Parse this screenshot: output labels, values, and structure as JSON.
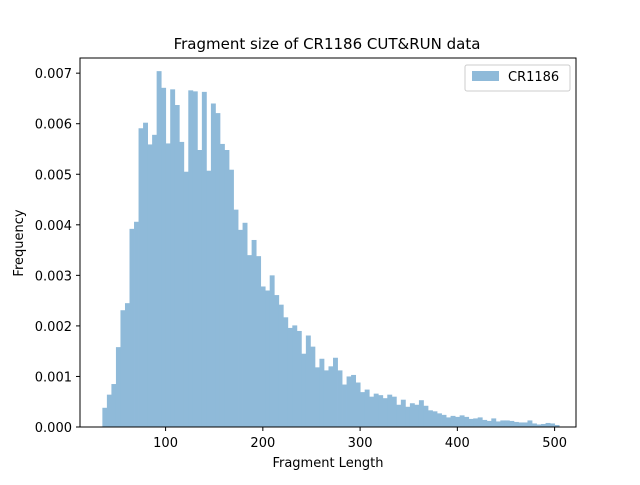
{
  "chart_data": {
    "type": "bar",
    "title": "Fragment size of CR1186 CUT&RUN data",
    "xlabel": "Fragment Length",
    "ylabel": "Frequency",
    "xlim": [
      12,
      522
    ],
    "ylim": [
      0,
      0.0073
    ],
    "x_ticks": [
      100,
      200,
      300,
      400,
      500
    ],
    "y_ticks": [
      0.0,
      0.001,
      0.002,
      0.003,
      0.004,
      0.005,
      0.006,
      0.007
    ],
    "x_tick_labels": [
      "100",
      "200",
      "300",
      "400",
      "500"
    ],
    "y_tick_labels": [
      "0.000",
      "0.001",
      "0.002",
      "0.003",
      "0.004",
      "0.005",
      "0.006",
      "0.007"
    ],
    "legend_position": "top-right",
    "series": [
      {
        "name": "CR1186",
        "color": "#8fbad9",
        "bin_start": 35,
        "bin_width": 4.65,
        "values": [
          0.00038,
          0.00064,
          0.00085,
          0.00158,
          0.00231,
          0.00245,
          0.00392,
          0.00406,
          0.00591,
          0.00602,
          0.00559,
          0.00578,
          0.00704,
          0.00671,
          0.00561,
          0.00668,
          0.00637,
          0.00564,
          0.00505,
          0.00666,
          0.00664,
          0.00548,
          0.00663,
          0.00507,
          0.0064,
          0.00621,
          0.0056,
          0.00548,
          0.00509,
          0.0043,
          0.0039,
          0.00404,
          0.0034,
          0.0037,
          0.00338,
          0.00278,
          0.0027,
          0.003,
          0.00261,
          0.00242,
          0.00217,
          0.00196,
          0.00201,
          0.0019,
          0.00145,
          0.00181,
          0.00159,
          0.00118,
          0.00135,
          0.00112,
          0.0012,
          0.00137,
          0.00112,
          0.00084,
          0.001,
          0.00103,
          0.00088,
          0.00069,
          0.00074,
          0.0006,
          0.00066,
          0.00063,
          0.00057,
          0.00064,
          0.0006,
          0.00044,
          0.00054,
          0.0004,
          0.00047,
          0.00044,
          0.00053,
          0.00042,
          0.00033,
          0.00031,
          0.00027,
          0.00024,
          0.00019,
          0.00022,
          0.0002,
          0.00023,
          0.0002,
          0.00016,
          0.00017,
          0.00019,
          0.00014,
          0.00012,
          0.00017,
          0.00011,
          0.00013,
          0.00013,
          0.00012,
          0.0001,
          9e-05,
          9e-05,
          0.00013,
          7e-05,
          5e-05,
          6e-05,
          8e-05,
          7e-05,
          4e-05
        ]
      }
    ]
  }
}
